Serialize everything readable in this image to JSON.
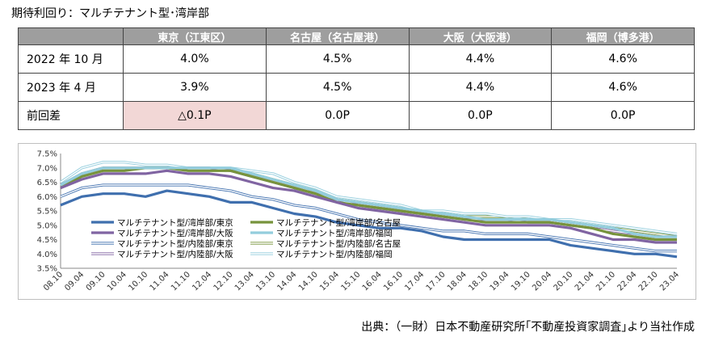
{
  "heading": "期待利回り：マルチテナント型･湾岸部",
  "table": {
    "columns": [
      "",
      "東京（江東区）",
      "名古屋（名古屋港）",
      "大阪（大阪港）",
      "福岡（博多港）"
    ],
    "rows": [
      {
        "label": "2022 年 10 月",
        "cells": [
          "4.0%",
          "4.5%",
          "4.4%",
          "4.6%"
        ]
      },
      {
        "label": "2023 年 4 月",
        "cells": [
          "3.9%",
          "4.5%",
          "4.4%",
          "4.6%"
        ]
      },
      {
        "label": "前回差",
        "cells": [
          "△0.1P",
          "0.0P",
          "0.0P",
          "0.0P"
        ]
      }
    ],
    "highlight_color": "#f2d7d6"
  },
  "chart_data": {
    "type": "line",
    "x": [
      "08.10",
      "09.04",
      "09.10",
      "10.04",
      "10.10",
      "11.04",
      "11.10",
      "12.04",
      "12.10",
      "13.04",
      "13.10",
      "14.04",
      "14.10",
      "15.04",
      "15.10",
      "16.04",
      "16.10",
      "17.04",
      "17.10",
      "18.04",
      "18.10",
      "19.04",
      "19.10",
      "20.04",
      "20.10",
      "21.04",
      "21.10",
      "22.04",
      "22.10",
      "23.04"
    ],
    "ylim": [
      3.5,
      7.5
    ],
    "yticks": [
      "3.5%",
      "4.0%",
      "4.5%",
      "5.0%",
      "5.5%",
      "6.0%",
      "6.5%",
      "7.0%",
      "7.5%"
    ],
    "grid": false,
    "legend_position": "lower-left inside",
    "series": [
      {
        "name": "マルチテナント型/湾岸部/東京",
        "color": "#3f6fae",
        "style": "thick",
        "values": [
          5.7,
          6.0,
          6.1,
          6.1,
          6.0,
          6.2,
          6.1,
          6.0,
          5.8,
          5.8,
          5.6,
          5.4,
          5.3,
          5.1,
          5.0,
          4.9,
          4.9,
          4.8,
          4.6,
          4.5,
          4.5,
          4.5,
          4.5,
          4.5,
          4.3,
          4.2,
          4.1,
          4.0,
          4.0,
          3.9
        ]
      },
      {
        "name": "マルチテナント型/湾岸部/名古屋",
        "color": "#77933c",
        "style": "thick",
        "values": [
          6.3,
          6.7,
          6.9,
          6.9,
          7.0,
          7.0,
          6.9,
          6.9,
          6.9,
          6.7,
          6.5,
          6.3,
          6.1,
          5.8,
          5.7,
          5.6,
          5.5,
          5.4,
          5.3,
          5.2,
          5.1,
          5.1,
          5.1,
          5.1,
          5.0,
          4.9,
          4.7,
          4.6,
          4.5,
          4.5
        ]
      },
      {
        "name": "マルチテナント型/湾岸部/大阪",
        "color": "#8064a2",
        "style": "thick",
        "values": [
          6.3,
          6.6,
          6.8,
          6.8,
          6.8,
          6.9,
          6.8,
          6.8,
          6.7,
          6.5,
          6.3,
          6.2,
          6.0,
          5.8,
          5.6,
          5.5,
          5.4,
          5.3,
          5.2,
          5.1,
          5.0,
          5.0,
          5.0,
          5.0,
          4.9,
          4.7,
          4.5,
          4.5,
          4.4,
          4.4
        ]
      },
      {
        "name": "マルチテナント型/湾岸部/福岡",
        "color": "#93cddd",
        "style": "thick",
        "values": [
          6.4,
          6.8,
          7.0,
          7.0,
          7.0,
          7.0,
          7.0,
          7.0,
          7.0,
          6.8,
          6.6,
          6.4,
          6.2,
          5.9,
          5.8,
          5.7,
          5.6,
          5.5,
          5.4,
          5.3,
          5.2,
          5.2,
          5.2,
          5.2,
          5.1,
          5.0,
          4.9,
          4.7,
          4.6,
          4.6
        ]
      },
      {
        "name": "マルチテナント型/内陸部/東京",
        "color": "#3f6fae",
        "style": "double",
        "values": [
          6.0,
          6.3,
          6.4,
          6.4,
          6.4,
          6.4,
          6.4,
          6.3,
          6.2,
          6.0,
          5.9,
          5.7,
          5.6,
          5.4,
          5.2,
          5.1,
          5.0,
          4.9,
          4.8,
          4.8,
          4.7,
          4.7,
          4.7,
          4.6,
          4.5,
          4.4,
          4.3,
          4.2,
          4.1,
          4.1
        ]
      },
      {
        "name": "マルチテナント型/内陸部/名古屋",
        "color": "#77933c",
        "style": "double",
        "values": [
          6.4,
          6.8,
          7.0,
          7.0,
          7.0,
          7.0,
          7.0,
          7.0,
          6.9,
          6.8,
          6.6,
          6.4,
          6.2,
          5.9,
          5.8,
          5.7,
          5.6,
          5.5,
          5.4,
          5.3,
          5.3,
          5.3,
          5.2,
          5.2,
          5.1,
          5.0,
          4.9,
          4.8,
          4.7,
          4.6
        ]
      },
      {
        "name": "マルチテナント型/内陸部/大阪",
        "color": "#8064a2",
        "style": "double",
        "values": [
          6.4,
          6.8,
          7.0,
          7.0,
          7.0,
          7.0,
          7.0,
          7.0,
          6.9,
          6.7,
          6.5,
          6.3,
          6.1,
          5.9,
          5.7,
          5.6,
          5.5,
          5.4,
          5.3,
          5.2,
          5.2,
          5.2,
          5.1,
          5.1,
          5.0,
          4.9,
          4.8,
          4.7,
          4.6,
          4.6
        ]
      },
      {
        "name": "マルチテナント型/内陸部/福岡",
        "color": "#93cddd",
        "style": "double",
        "values": [
          6.5,
          7.0,
          7.2,
          7.2,
          7.1,
          7.1,
          7.0,
          7.0,
          7.0,
          6.9,
          6.8,
          6.5,
          6.3,
          6.0,
          5.9,
          5.8,
          5.7,
          5.5,
          5.5,
          5.4,
          5.4,
          5.3,
          5.3,
          5.2,
          5.2,
          5.1,
          5.0,
          4.9,
          4.8,
          4.7
        ]
      }
    ]
  },
  "source": "出典：（一財）日本不動産研究所｢不動産投資家調査｣より当社作成"
}
